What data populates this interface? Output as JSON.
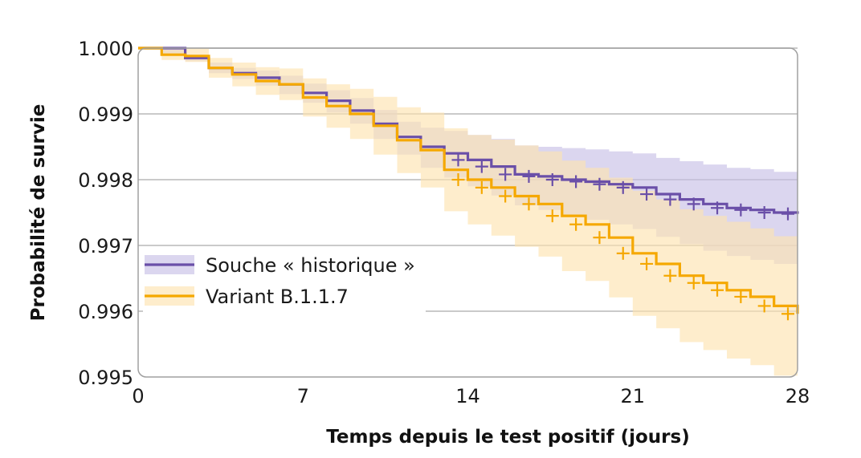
{
  "chart_data": {
    "type": "line",
    "subtype": "kaplan-meier step survival curve with confidence bands and censor marks",
    "title": "",
    "xlabel": "Temps depuis le test positif (jours)",
    "ylabel": "Probabilité de survie",
    "xlim": [
      0,
      28
    ],
    "ylim": [
      0.995,
      1.0
    ],
    "xticks": [
      0,
      7,
      14,
      21,
      28
    ],
    "xtick_labels": [
      "0",
      "7",
      "14",
      "21",
      "28"
    ],
    "yticks": [
      0.995,
      0.996,
      0.997,
      0.998,
      0.999,
      1.0
    ],
    "ytick_labels": [
      "0.995",
      "0.996",
      "0.997",
      "0.998",
      "0.999",
      "1.000"
    ],
    "grid": "horizontal",
    "legend_position": "center-left",
    "series": [
      {
        "name": "Souche « historique »",
        "color": "#6a4fa8",
        "band_color": "#c8c0e6",
        "x": [
          0,
          1,
          2,
          3,
          4,
          5,
          6,
          7,
          8,
          9,
          10,
          11,
          12,
          13,
          14,
          15,
          16,
          17,
          18,
          19,
          20,
          21,
          22,
          23,
          24,
          25,
          26,
          27,
          28
        ],
        "y": [
          1.0,
          1.0,
          0.99985,
          0.9997,
          0.99962,
          0.99955,
          0.99945,
          0.99932,
          0.9992,
          0.99905,
          0.99885,
          0.99865,
          0.9985,
          0.9984,
          0.9983,
          0.9982,
          0.99808,
          0.99805,
          0.998,
          0.99797,
          0.99793,
          0.99788,
          0.99778,
          0.9977,
          0.99763,
          0.99757,
          0.99754,
          0.9975,
          0.99748
        ],
        "lower": [
          1.0,
          0.9999,
          0.9998,
          0.99962,
          0.99953,
          0.99943,
          0.9993,
          0.99917,
          0.99902,
          0.99885,
          0.99862,
          0.99838,
          0.99818,
          0.99803,
          0.9979,
          0.99776,
          0.99761,
          0.99754,
          0.99746,
          0.99739,
          0.99732,
          0.99725,
          0.99713,
          0.99702,
          0.99692,
          0.99684,
          0.99678,
          0.99672,
          0.99667
        ],
        "upper": [
          1.0,
          1.0,
          0.9999,
          0.99978,
          0.9997,
          0.99966,
          0.99958,
          0.99946,
          0.99936,
          0.99924,
          0.99906,
          0.99888,
          0.99879,
          0.99874,
          0.99868,
          0.99862,
          0.99852,
          0.9985,
          0.99848,
          0.99846,
          0.99843,
          0.9984,
          0.99833,
          0.99828,
          0.99823,
          0.99818,
          0.99816,
          0.99812,
          0.99812
        ],
        "censor_x": [
          14,
          15,
          16,
          17,
          18,
          19,
          20,
          21,
          22,
          23,
          24,
          25,
          26,
          27,
          28
        ]
      },
      {
        "name": "Variant B.1.1.7",
        "color": "#f5a800",
        "band_color": "#fde3b0",
        "x": [
          0,
          1,
          2,
          3,
          4,
          5,
          6,
          7,
          8,
          9,
          10,
          11,
          12,
          13,
          14,
          15,
          16,
          17,
          18,
          19,
          20,
          21,
          22,
          23,
          24,
          25,
          26,
          27,
          28
        ],
        "y": [
          1.0,
          0.9999,
          0.99988,
          0.9997,
          0.9996,
          0.9995,
          0.99945,
          0.99925,
          0.99912,
          0.999,
          0.99882,
          0.9986,
          0.99845,
          0.99815,
          0.998,
          0.99788,
          0.99775,
          0.99763,
          0.99745,
          0.99732,
          0.99712,
          0.99688,
          0.99672,
          0.99654,
          0.99643,
          0.99632,
          0.99622,
          0.99608,
          0.99596
        ],
        "lower": [
          1.0,
          0.99982,
          0.99979,
          0.99955,
          0.99942,
          0.99929,
          0.99921,
          0.99896,
          0.99879,
          0.99862,
          0.99838,
          0.9981,
          0.99788,
          0.99752,
          0.99732,
          0.99715,
          0.99698,
          0.99683,
          0.99661,
          0.99646,
          0.99621,
          0.99593,
          0.99574,
          0.99553,
          0.99541,
          0.99528,
          0.99518,
          0.99502,
          0.99487
        ],
        "upper": [
          1.0,
          1.0,
          1.0,
          0.99985,
          0.99978,
          0.99971,
          0.99969,
          0.99954,
          0.99945,
          0.99938,
          0.99926,
          0.9991,
          0.99902,
          0.99878,
          0.99868,
          0.99861,
          0.99852,
          0.99843,
          0.99829,
          0.99818,
          0.99803,
          0.99783,
          0.9977,
          0.99755,
          0.99745,
          0.99736,
          0.99726,
          0.99714,
          0.99705
        ],
        "censor_x": [
          14,
          15,
          16,
          17,
          18,
          19,
          20,
          21,
          22,
          23,
          24,
          25,
          26,
          27,
          28
        ]
      }
    ]
  }
}
